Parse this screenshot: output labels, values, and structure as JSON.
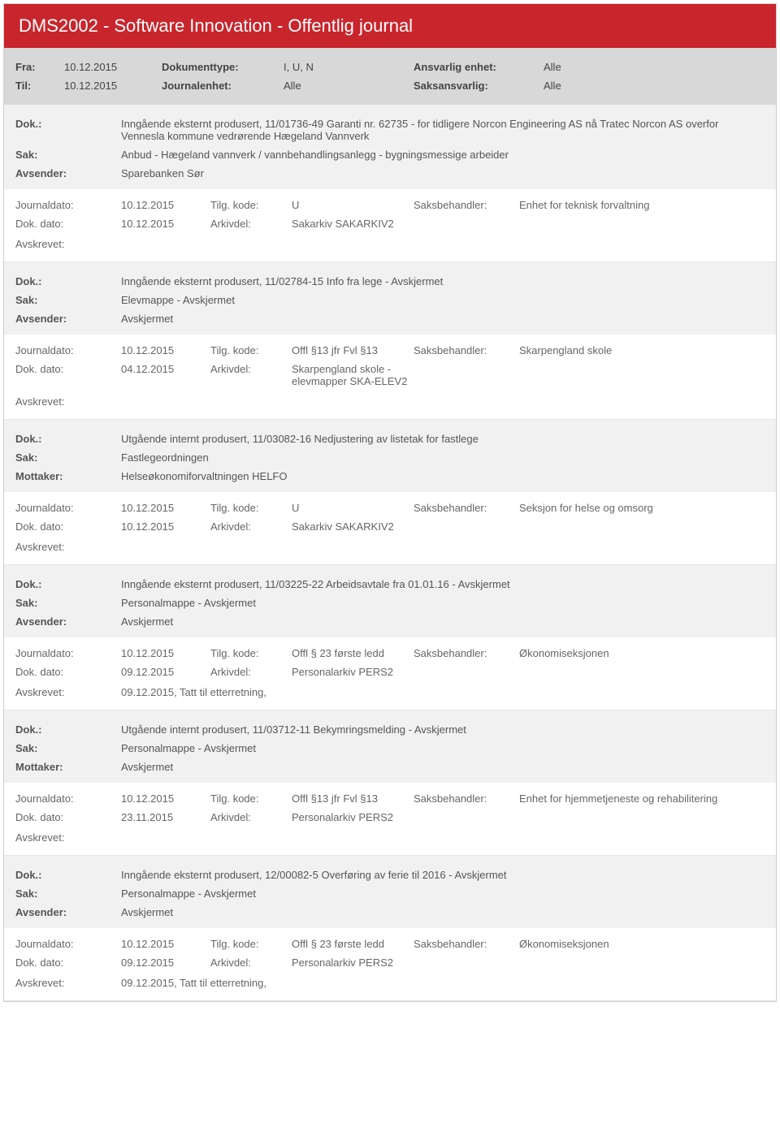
{
  "header": {
    "title": "DMS2002 - Software Innovation - Offentlig journal"
  },
  "filter": {
    "fra_label": "Fra:",
    "fra_value": "10.12.2015",
    "til_label": "Til:",
    "til_value": "10.12.2015",
    "doktype_label": "Dokumenttype:",
    "doktype_value": "I, U, N",
    "journalenhet_label": "Journalenhet:",
    "journalenhet_value": "Alle",
    "ansvarlig_label": "Ansvarlig enhet:",
    "ansvarlig_value": "Alle",
    "saksansvarlig_label": "Saksansvarlig:",
    "saksansvarlig_value": "Alle"
  },
  "labels": {
    "dok": "Dok.:",
    "sak": "Sak:",
    "avsender": "Avsender:",
    "mottaker": "Mottaker:",
    "journaldato": "Journaldato:",
    "dokdato": "Dok. dato:",
    "tilgkode": "Tilg. kode:",
    "arkivdel": "Arkivdel:",
    "saksbehandler": "Saksbehandler:",
    "avskrevet": "Avskrevet:"
  },
  "entries": [
    {
      "dok": "Inngående eksternt produsert, 11/01736-49 Garanti nr. 62735 - for tidligere Norcon Engineering AS  nå Tratec Norcon AS overfor Vennesla kommune vedrørende Hægeland Vannverk",
      "sak": "Anbud - Hægeland vannverk / vannbehandlingsanlegg - bygningsmessige arbeider",
      "party_label": "Avsender:",
      "party": "Sparebanken Sør",
      "journaldato": "10.12.2015",
      "tilgkode": "U",
      "saksbehandler": "Enhet for teknisk forvaltning",
      "dokdato": "10.12.2015",
      "arkivdel": "Sakarkiv SAKARKIV2",
      "avskrevet": ""
    },
    {
      "dok": "Inngående eksternt produsert, 11/02784-15 Info fra lege - Avskjermet",
      "sak": "Elevmappe - Avskjermet",
      "party_label": "Avsender:",
      "party": "Avskjermet",
      "journaldato": "10.12.2015",
      "tilgkode": "Offl §13 jfr Fvl §13",
      "saksbehandler": "Skarpengland skole",
      "dokdato": "04.12.2015",
      "arkivdel": "Skarpengland skole - elevmapper SKA-ELEV2",
      "avskrevet": ""
    },
    {
      "dok": "Utgående internt produsert, 11/03082-16 Nedjustering av listetak for fastlege",
      "sak": "Fastlegeordningen",
      "party_label": "Mottaker:",
      "party": "Helseøkonomiforvaltningen HELFO",
      "journaldato": "10.12.2015",
      "tilgkode": "U",
      "saksbehandler": "Seksjon for helse og omsorg",
      "dokdato": "10.12.2015",
      "arkivdel": "Sakarkiv SAKARKIV2",
      "avskrevet": ""
    },
    {
      "dok": "Inngående eksternt produsert, 11/03225-22 Arbeidsavtale fra 01.01.16 - Avskjermet",
      "sak": "Personalmappe - Avskjermet",
      "party_label": "Avsender:",
      "party": "Avskjermet",
      "journaldato": "10.12.2015",
      "tilgkode": "Offl § 23 første ledd",
      "saksbehandler": "Økonomiseksjonen",
      "dokdato": "09.12.2015",
      "arkivdel": "Personalarkiv PERS2",
      "avskrevet": "09.12.2015, Tatt til etterretning,"
    },
    {
      "dok": "Utgående internt produsert, 11/03712-11 Bekymringsmelding - Avskjermet",
      "sak": "Personalmappe - Avskjermet",
      "party_label": "Mottaker:",
      "party": "Avskjermet",
      "journaldato": "10.12.2015",
      "tilgkode": "Offl §13 jfr Fvl §13",
      "saksbehandler": "Enhet for hjemmetjeneste og rehabilitering",
      "dokdato": "23.11.2015",
      "arkivdel": "Personalarkiv PERS2",
      "avskrevet": ""
    },
    {
      "dok": "Inngående eksternt produsert, 12/00082-5 Overføring av ferie til 2016 - Avskjermet",
      "sak": "Personalmappe - Avskjermet",
      "party_label": "Avsender:",
      "party": "Avskjermet",
      "journaldato": "10.12.2015",
      "tilgkode": "Offl § 23 første ledd",
      "saksbehandler": "Økonomiseksjonen",
      "dokdato": "09.12.2015",
      "arkivdel": "Personalarkiv PERS2",
      "avskrevet": "09.12.2015, Tatt til etterretning,"
    }
  ]
}
